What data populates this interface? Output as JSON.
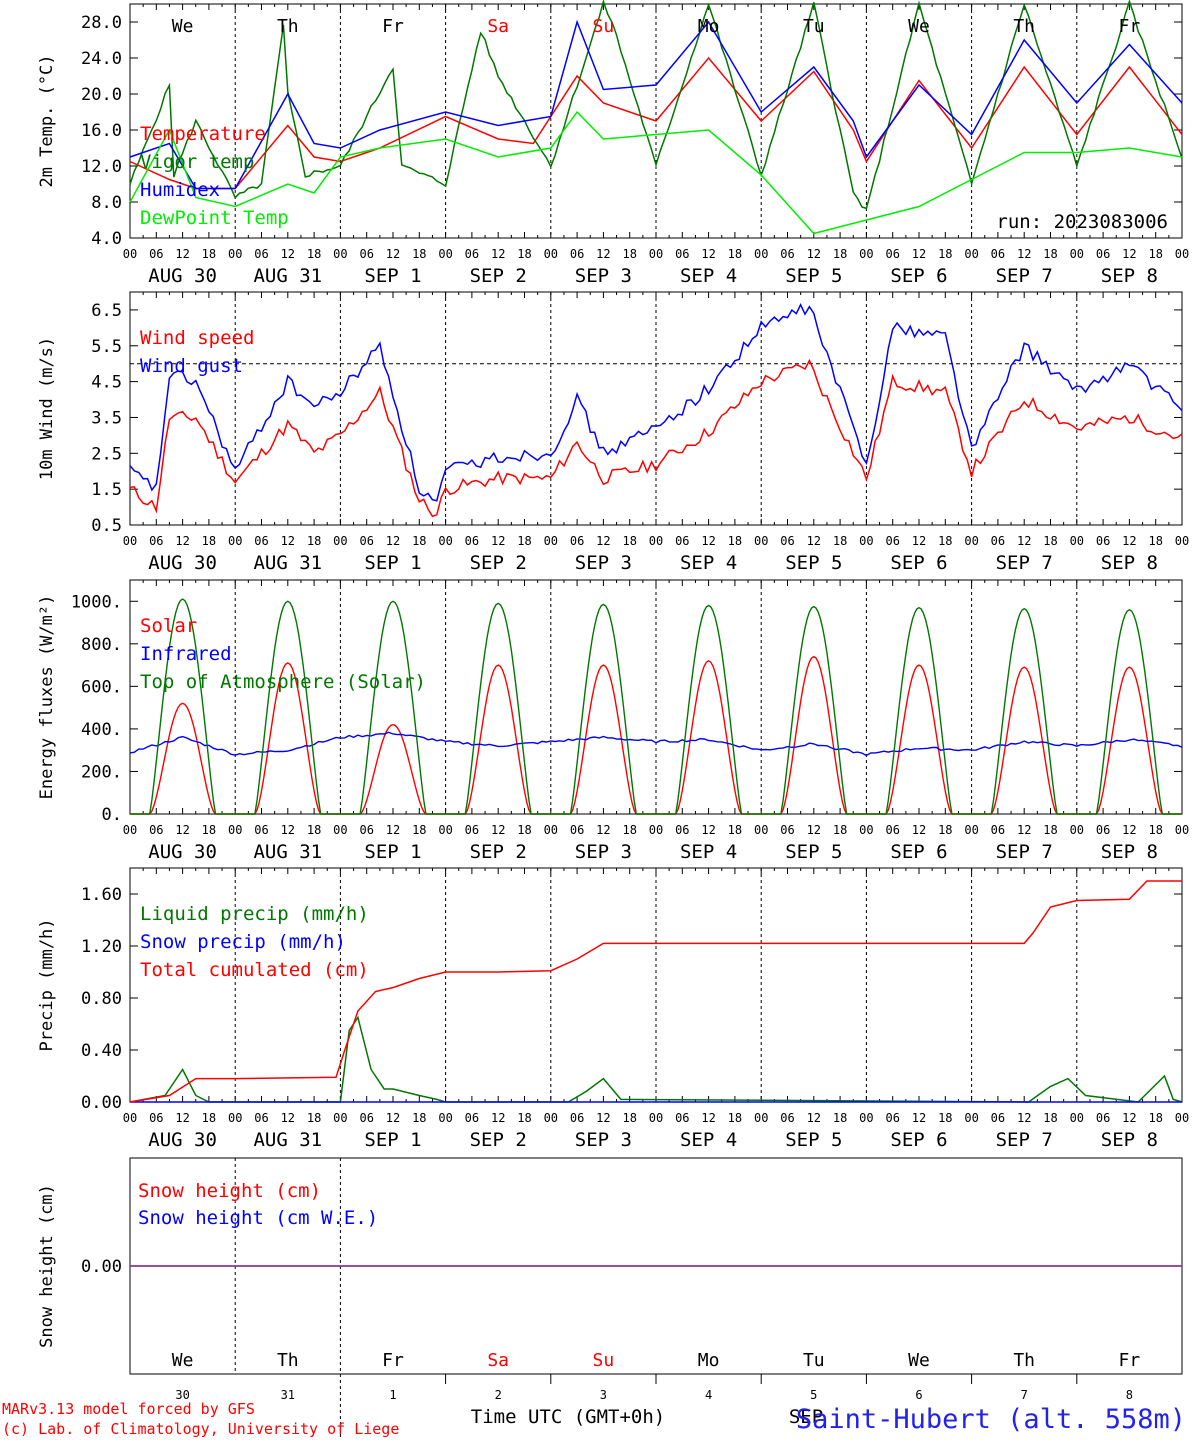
{
  "run_label": "run: 2023083006",
  "footer": {
    "model": "MARv3.13 model forced by GFS",
    "copyright": "(c) Lab. of Climatology, University of Liege",
    "xlabel": "Time UTC (GMT+0h)",
    "station": "Saint-Hubert (alt. 558m)",
    "overlap_label": "SEP"
  },
  "days": {
    "weekdays": [
      "We",
      "Th",
      "Fr",
      "Sa",
      "Su",
      "Mo",
      "Tu",
      "We",
      "Th",
      "Fr"
    ],
    "date_labels": [
      "AUG 30",
      "AUG 31",
      "SEP  1",
      "SEP  2",
      "SEP  3",
      "SEP  4",
      "SEP  5",
      "SEP  6",
      "SEP  7",
      "SEP  8"
    ],
    "day_numbers": [
      "30",
      "31",
      "1",
      "2",
      "3",
      "4",
      "5",
      "6",
      "7",
      "8"
    ],
    "hour_ticks": [
      "00",
      "06",
      "12",
      "18"
    ],
    "final_tick": "00",
    "weekend_color": "#ff0000",
    "weekday_color": "#000000"
  },
  "chart_data": [
    {
      "type": "line",
      "ylabel": "2m Temp. (°C)",
      "ylim": [
        4,
        30
      ],
      "yticks": [
        "4.0",
        "8.0",
        "12.0",
        "16.0",
        "20.0",
        "24.0",
        "28.0"
      ],
      "x_unit": "hours since 2023-08-30 00 UTC",
      "series": [
        {
          "name": "Temperature",
          "color": "#ff0000",
          "x": [
            0,
            9,
            15,
            24,
            36,
            42,
            48,
            57,
            72,
            84,
            92,
            102,
            108,
            120,
            132,
            144,
            156,
            165,
            168,
            180,
            192,
            204,
            216,
            228,
            240
          ],
          "y": [
            12.5,
            10.5,
            9.5,
            9.5,
            16.5,
            13,
            12.5,
            14,
            17.5,
            15,
            14.5,
            22,
            19,
            17,
            24,
            17,
            22.5,
            16,
            12.5,
            21.5,
            14,
            23,
            15.5,
            23,
            15.5
          ]
        },
        {
          "name": "Vigor temp",
          "color": "#007700",
          "x": [
            0,
            9,
            10,
            15,
            24,
            30,
            35,
            36,
            40,
            48,
            60,
            62,
            72,
            80,
            84,
            96,
            108,
            110,
            120,
            132,
            144,
            156,
            165,
            168,
            180,
            192,
            204,
            216,
            228,
            240
          ],
          "y": [
            10,
            21,
            11,
            17,
            8.5,
            10,
            27.5,
            20,
            11,
            12,
            23,
            12,
            10,
            27,
            22,
            12,
            30,
            28,
            12,
            30,
            11,
            30,
            9,
            7,
            30,
            10,
            30,
            12,
            30,
            13
          ]
        },
        {
          "name": "Humidex",
          "color": "#0000ff",
          "x": [
            0,
            9,
            15,
            24,
            36,
            42,
            48,
            57,
            72,
            84,
            96,
            102,
            108,
            120,
            132,
            144,
            156,
            165,
            168,
            180,
            192,
            204,
            216,
            228,
            240
          ],
          "y": [
            13,
            14.5,
            9.5,
            9.5,
            20,
            14.5,
            14,
            16,
            18,
            16.5,
            17.5,
            28,
            20.5,
            21,
            28,
            18,
            23,
            17,
            13,
            21,
            15.5,
            26,
            19,
            25.5,
            19
          ]
        },
        {
          "name": "DewPoint Temp",
          "color": "#00ee00",
          "x": [
            0,
            9,
            15,
            24,
            36,
            42,
            48,
            57,
            72,
            84,
            96,
            102,
            108,
            120,
            132,
            144,
            156,
            168,
            180,
            192,
            204,
            216,
            228,
            240
          ],
          "y": [
            8,
            16,
            8.5,
            7.5,
            10,
            9,
            13,
            14,
            15,
            13,
            14,
            18,
            15,
            15.5,
            16,
            11,
            4.5,
            6,
            7.5,
            10.5,
            13.5,
            13.5,
            14,
            13
          ]
        }
      ]
    },
    {
      "type": "line",
      "ylabel": "10m Wind (m/s)",
      "ylim": [
        0.5,
        7.0
      ],
      "yticks": [
        "0.5",
        "1.5",
        "2.5",
        "3.5",
        "4.5",
        "5.5",
        "6.5"
      ],
      "ref_line": 5,
      "x_unit": "hours since 2023-08-30 00 UTC",
      "series": [
        {
          "name": "Wind speed",
          "color": "#ff0000",
          "x": [
            0,
            6,
            9,
            15,
            24,
            36,
            42,
            48,
            57,
            66,
            70,
            72,
            84,
            96,
            102,
            108,
            120,
            132,
            144,
            155,
            168,
            174,
            186,
            192,
            204,
            216,
            228,
            240
          ],
          "y": [
            1.5,
            1,
            3.5,
            3.5,
            1.7,
            3.3,
            2.5,
            3,
            4.2,
            1.2,
            0.8,
            1.5,
            1.8,
            1.8,
            2.8,
            1.8,
            2.2,
            3.1,
            4.5,
            5.0,
            1.8,
            4.5,
            4.2,
            2.0,
            4.0,
            3.2,
            3.5,
            2.9
          ]
        },
        {
          "name": "Wind gust",
          "color": "#0000ff",
          "x": [
            0,
            6,
            9,
            15,
            24,
            36,
            42,
            48,
            57,
            66,
            70,
            72,
            84,
            96,
            102,
            108,
            120,
            132,
            144,
            155,
            168,
            174,
            186,
            192,
            204,
            216,
            228,
            240
          ],
          "y": [
            2,
            1.5,
            4.7,
            4.5,
            2,
            4.5,
            3.8,
            4.2,
            5.5,
            1.5,
            1.1,
            2,
            2.4,
            2.5,
            4.0,
            2.5,
            3.2,
            4.3,
            6.0,
            6.6,
            2.2,
            6.0,
            5.8,
            2.6,
            5.5,
            4.2,
            5.0,
            3.7
          ]
        }
      ]
    },
    {
      "type": "line",
      "ylabel": "Energy fluxes (W/m²)",
      "ylim": [
        0,
        1100
      ],
      "yticks": [
        "0.",
        "200.",
        "400.",
        "600.",
        "800.",
        "1000."
      ],
      "x_unit": "hours since 2023-08-30 00 UTC",
      "daily_peaks": {
        "top_of_atmosphere": [
          1010,
          1000,
          1000,
          990,
          985,
          980,
          975,
          970,
          965,
          960
        ],
        "solar": [
          520,
          710,
          420,
          700,
          700,
          720,
          740,
          700,
          690,
          690
        ]
      },
      "series": [
        {
          "name": "Solar",
          "color": "#ff0000",
          "x": [],
          "y": []
        },
        {
          "name": "Infrared",
          "color": "#0000ff",
          "x": [
            0,
            12,
            24,
            36,
            48,
            60,
            72,
            84,
            96,
            108,
            120,
            132,
            144,
            156,
            168,
            180,
            192,
            204,
            216,
            228,
            240
          ],
          "y": [
            290,
            360,
            280,
            300,
            360,
            380,
            340,
            320,
            340,
            360,
            340,
            350,
            300,
            330,
            280,
            310,
            300,
            340,
            320,
            350,
            320
          ]
        },
        {
          "name": "Top of Atmosphere (Solar)",
          "color": "#007700",
          "x": [],
          "y": []
        }
      ]
    },
    {
      "type": "line",
      "ylabel": "Precip (mm/h)",
      "ylim": [
        0,
        1.8
      ],
      "yticks": [
        "0.00",
        "0.40",
        "0.80",
        "1.20",
        "1.60"
      ],
      "x_unit": "hours since 2023-08-30 00 UTC",
      "series": [
        {
          "name": "Liquid precip (mm/h)",
          "color": "#007700",
          "x": [
            0,
            8,
            12,
            15,
            18,
            48,
            50,
            52,
            55,
            58,
            60,
            66,
            70,
            72,
            100,
            104,
            108,
            112,
            205,
            210,
            214,
            218,
            230,
            236,
            238,
            240
          ],
          "y": [
            0,
            0.05,
            0.25,
            0.05,
            0,
            0,
            0.55,
            0.65,
            0.25,
            0.1,
            0.1,
            0.05,
            0.02,
            0,
            0,
            0.08,
            0.18,
            0.02,
            0,
            0.12,
            0.18,
            0.05,
            0,
            0.2,
            0.02,
            0
          ]
        },
        {
          "name": "Snow precip (mm/h)",
          "color": "#0000ff",
          "x": [
            0,
            240
          ],
          "y": [
            0,
            0
          ]
        },
        {
          "name": "Total cumulated (cm)",
          "color": "#ff0000",
          "x": [
            0,
            9,
            15,
            24,
            47,
            49,
            52,
            56,
            60,
            66,
            72,
            84,
            96,
            102,
            108,
            120,
            144,
            168,
            192,
            204,
            206,
            210,
            216,
            228,
            232,
            240
          ],
          "y": [
            0,
            0.05,
            0.18,
            0.18,
            0.19,
            0.4,
            0.7,
            0.85,
            0.88,
            0.95,
            1.0,
            1.0,
            1.01,
            1.1,
            1.22,
            1.22,
            1.22,
            1.22,
            1.22,
            1.22,
            1.3,
            1.5,
            1.55,
            1.56,
            1.7,
            1.7
          ]
        }
      ]
    },
    {
      "type": "line",
      "ylabel": "Snow height (cm)",
      "ytick": "0.00",
      "x_unit": "hours since 2023-08-30 00 UTC",
      "series": [
        {
          "name": "Snow height (cm)",
          "color": "#ff0000",
          "x": [
            0,
            240
          ],
          "y": [
            0,
            0
          ]
        },
        {
          "name": "Snow height (cm W.E.)",
          "color": "#0000ff",
          "x": [
            0,
            240
          ],
          "y": [
            0,
            0
          ]
        }
      ]
    }
  ]
}
